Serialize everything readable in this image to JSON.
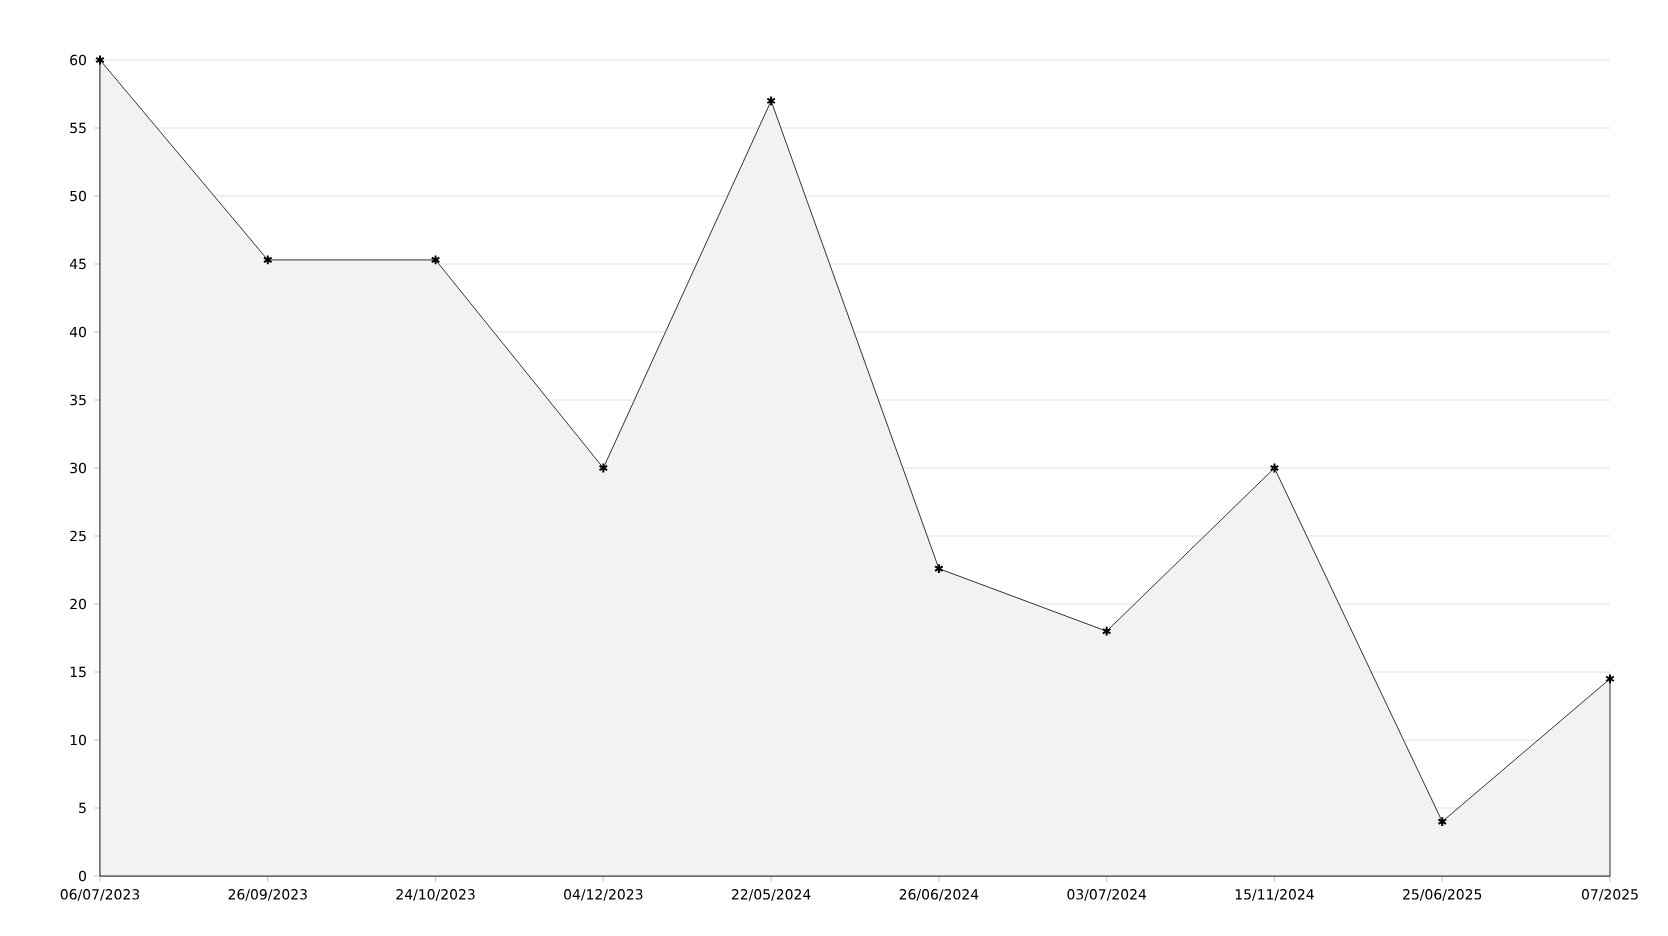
{
  "chart_data": {
    "type": "area",
    "categories": [
      "06/07/2023",
      "26/09/2023",
      "24/10/2023",
      "04/12/2023",
      "22/05/2024",
      "26/06/2024",
      "03/07/2024",
      "15/11/2024",
      "25/06/2025",
      "07/2025"
    ],
    "series": [
      {
        "color": "#000000",
        "values": [
          60,
          45.3,
          45.3,
          30,
          57,
          22.6,
          18,
          30,
          4,
          14.5
        ]
      }
    ],
    "ylim": [
      0,
      60
    ],
    "yticks": [
      0,
      5,
      10,
      15,
      20,
      25,
      30,
      35,
      40,
      45,
      50,
      55,
      60
    ],
    "grid": "y",
    "marker": "cross",
    "line_style": "solid"
  }
}
